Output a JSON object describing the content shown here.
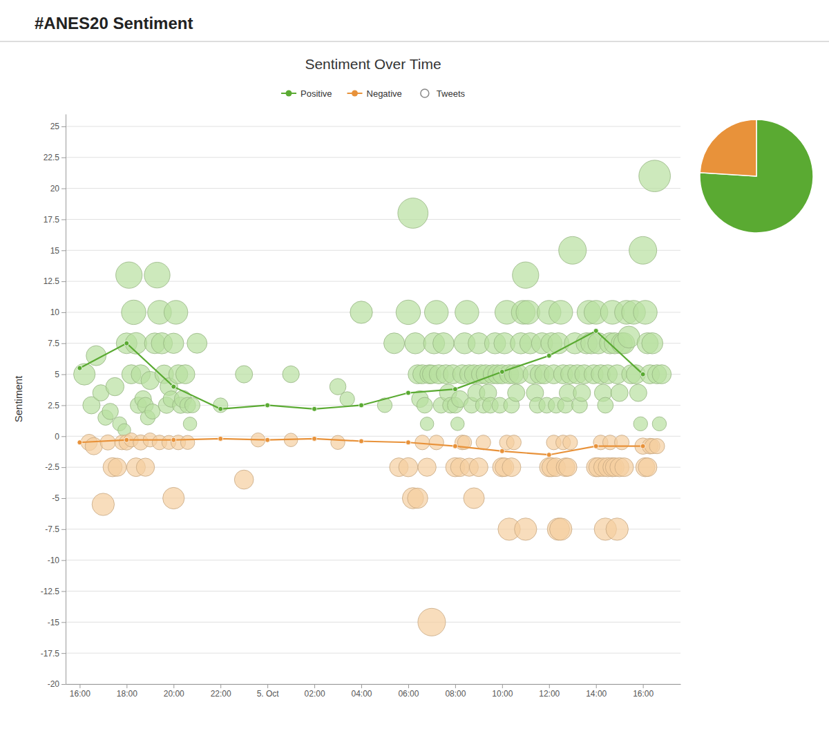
{
  "title": "#ANES20 Sentiment",
  "chart_data": [
    {
      "type": "bubble",
      "title": "Sentiment Over Time",
      "y_label": "Sentiment",
      "xlim": [
        -0.3,
        12.8
      ],
      "xticks": [
        {
          "value": 0,
          "label": "16:00"
        },
        {
          "value": 1,
          "label": "18:00"
        },
        {
          "value": 2,
          "label": "20:00"
        },
        {
          "value": 3,
          "label": "22:00"
        },
        {
          "value": 4,
          "label": "5. Oct"
        },
        {
          "value": 5,
          "label": "02:00"
        },
        {
          "value": 6,
          "label": "04:00"
        },
        {
          "value": 7,
          "label": "06:00"
        },
        {
          "value": 8,
          "label": "08:00"
        },
        {
          "value": 9,
          "label": "10:00"
        },
        {
          "value": 10,
          "label": "12:00"
        },
        {
          "value": 11,
          "label": "14:00"
        },
        {
          "value": 12,
          "label": "16:00"
        }
      ],
      "ylim": [
        -20,
        26
      ],
      "yticks": [
        -20,
        -17.5,
        -15,
        -12.5,
        -10,
        -7.5,
        -5,
        -2.5,
        0,
        2.5,
        5,
        7.5,
        10,
        12.5,
        15,
        17.5,
        20,
        22.5,
        25
      ],
      "grid": "y",
      "legend": "top",
      "series": [
        {
          "name": "Positive",
          "type": "line",
          "color": "#5aaa32",
          "marker": "circle",
          "line_style": "solid",
          "x": [
            0,
            1,
            2,
            3,
            4,
            5,
            6,
            7,
            8,
            9,
            10,
            11,
            12
          ],
          "values": [
            5.5,
            7.5,
            4.0,
            2.2,
            2.5,
            2.2,
            2.5,
            3.5,
            3.8,
            5.2,
            6.5,
            8.5,
            5.0
          ]
        },
        {
          "name": "Negative",
          "type": "line",
          "color": "#e8923a",
          "marker": "circle",
          "line_style": "solid",
          "x": [
            0,
            1,
            2,
            3,
            4,
            5,
            6,
            7,
            8,
            9,
            10,
            11,
            12
          ],
          "values": [
            -0.5,
            -0.3,
            -0.3,
            -0.2,
            -0.3,
            -0.2,
            -0.4,
            -0.5,
            -0.8,
            -1.2,
            -1.5,
            -0.8,
            -0.8
          ]
        },
        {
          "name": "Tweets",
          "type": "bubble",
          "color": "#b8dfa0",
          "marker": "circle",
          "x": [
            0.1,
            0.25,
            0.35,
            0.45,
            0.55,
            0.65,
            0.75,
            0.85,
            0.95,
            1.0,
            1.05,
            1.1,
            1.15,
            1.2,
            1.25,
            1.3,
            1.35,
            1.4,
            1.45,
            1.5,
            1.55,
            1.6,
            1.65,
            1.7,
            1.75,
            1.8,
            1.85,
            1.9,
            1.95,
            2.0,
            2.05,
            2.1,
            2.15,
            2.2,
            2.25,
            2.3,
            2.35,
            2.4,
            2.5,
            3.0,
            3.5,
            4.5,
            5.5,
            5.7,
            6.0,
            6.5,
            6.7,
            7.0,
            7.1,
            7.15,
            7.2,
            7.25,
            7.3,
            7.35,
            7.4,
            7.45,
            7.5,
            7.55,
            7.6,
            7.65,
            7.7,
            7.75,
            7.8,
            7.85,
            7.9,
            7.95,
            8.0,
            8.05,
            8.1,
            8.15,
            8.2,
            8.25,
            8.3,
            8.35,
            8.4,
            8.45,
            8.5,
            8.55,
            8.6,
            8.65,
            8.7,
            8.75,
            8.8,
            8.85,
            8.9,
            8.95,
            9.0,
            9.05,
            9.1,
            9.15,
            9.2,
            9.25,
            9.3,
            9.35,
            9.4,
            9.45,
            9.5,
            9.55,
            9.6,
            9.65,
            9.7,
            9.75,
            9.8,
            9.85,
            9.9,
            9.95,
            10.0,
            10.05,
            10.1,
            10.15,
            10.2,
            10.25,
            10.3,
            10.35,
            10.4,
            10.45,
            10.5,
            10.55,
            10.6,
            10.65,
            10.7,
            10.75,
            10.8,
            10.85,
            10.9,
            10.95,
            11.0,
            11.05,
            11.1,
            11.15,
            11.2,
            11.25,
            11.3,
            11.35,
            11.4,
            11.45,
            11.5,
            11.55,
            11.6,
            11.65,
            11.7,
            11.75,
            11.8,
            11.85,
            11.9,
            11.95,
            12.0,
            12.05,
            12.1,
            12.15,
            12.2,
            12.25,
            12.3,
            12.35,
            12.4
          ],
          "values": [
            5.0,
            2.5,
            6.5,
            3.5,
            1.5,
            2.0,
            4.0,
            1.0,
            0.5,
            7.5,
            13.0,
            5.0,
            10.0,
            7.5,
            2.5,
            5.0,
            3.0,
            2.5,
            1.5,
            4.5,
            2.0,
            7.5,
            13.0,
            10.0,
            7.5,
            5.0,
            2.5,
            4.0,
            3.0,
            7.5,
            10.0,
            5.0,
            2.5,
            3.0,
            5.0,
            2.5,
            1.0,
            2.5,
            7.5,
            2.5,
            5.0,
            5.0,
            4.0,
            3.0,
            10.0,
            2.5,
            7.5,
            10.0,
            18.0,
            7.5,
            5.0,
            3.0,
            5.0,
            2.5,
            1.0,
            5.0,
            5.0,
            7.5,
            10.0,
            5.0,
            2.5,
            7.5,
            5.0,
            3.5,
            2.5,
            5.0,
            2.5,
            1.0,
            3.0,
            5.0,
            7.5,
            10.0,
            5.0,
            2.5,
            5.0,
            3.5,
            7.5,
            5.0,
            2.5,
            5.0,
            3.5,
            2.5,
            5.0,
            7.5,
            5.0,
            2.5,
            5.0,
            7.5,
            10.0,
            5.0,
            2.5,
            5.0,
            3.5,
            5.0,
            7.5,
            10.0,
            13.0,
            10.0,
            7.5,
            5.0,
            3.5,
            2.5,
            5.0,
            7.5,
            5.0,
            2.5,
            10.0,
            7.5,
            5.0,
            2.5,
            7.5,
            10.0,
            5.0,
            2.5,
            3.5,
            5.0,
            15.0,
            7.5,
            5.0,
            2.5,
            3.5,
            5.0,
            7.5,
            10.0,
            7.5,
            5.0,
            10.0,
            7.5,
            5.0,
            3.5,
            2.5,
            5.0,
            7.5,
            10.0,
            7.5,
            5.0,
            3.5,
            7.5,
            7.5,
            10.0,
            8.0,
            5.0,
            10.0,
            5.0,
            3.5,
            1.0,
            15.0,
            10.0,
            7.5,
            5.0,
            7.5,
            21.0,
            5.0,
            1.0,
            5.0
          ],
          "sizes": [
            28,
            18,
            24,
            16,
            14,
            16,
            20,
            12,
            10,
            26,
            42,
            22,
            36,
            28,
            16,
            22,
            17,
            15,
            13,
            20,
            14,
            26,
            40,
            34,
            27,
            21,
            16,
            19,
            16,
            25,
            34,
            22,
            16,
            18,
            22,
            15,
            11,
            14,
            24,
            13,
            18,
            17,
            16,
            13,
            30,
            13,
            26,
            36,
            55,
            27,
            22,
            17,
            22,
            15,
            11,
            22,
            21,
            27,
            34,
            22,
            15,
            27,
            22,
            18,
            15,
            22,
            15,
            11,
            17,
            22,
            27,
            34,
            22,
            15,
            22,
            18,
            27,
            22,
            15,
            22,
            18,
            15,
            22,
            27,
            22,
            15,
            22,
            27,
            34,
            22,
            15,
            22,
            18,
            22,
            27,
            34,
            42,
            34,
            27,
            22,
            18,
            15,
            22,
            27,
            22,
            15,
            34,
            27,
            22,
            15,
            27,
            34,
            22,
            15,
            18,
            22,
            46,
            27,
            22,
            15,
            18,
            22,
            27,
            34,
            27,
            22,
            34,
            27,
            22,
            18,
            15,
            22,
            27,
            34,
            27,
            22,
            18,
            27,
            27,
            34,
            29,
            22,
            34,
            22,
            18,
            12,
            46,
            34,
            27,
            22,
            27,
            60,
            22,
            12,
            22
          ]
        },
        {
          "type": "bubble",
          "color": "#f5cfa0",
          "marker": "circle",
          "x": [
            0.2,
            0.3,
            0.5,
            0.6,
            0.7,
            0.8,
            0.9,
            1.0,
            1.1,
            1.2,
            1.3,
            1.4,
            1.5,
            1.7,
            1.9,
            2.0,
            2.1,
            2.3,
            3.5,
            3.8,
            4.5,
            5.5,
            6.8,
            7.0,
            7.1,
            7.2,
            7.3,
            7.4,
            7.5,
            7.6,
            8.0,
            8.1,
            8.15,
            8.2,
            8.3,
            8.4,
            8.5,
            8.6,
            9.0,
            9.05,
            9.1,
            9.15,
            9.2,
            9.25,
            9.5,
            10.0,
            10.05,
            10.1,
            10.15,
            10.2,
            10.25,
            10.3,
            10.35,
            10.4,
            10.45,
            11.0,
            11.05,
            11.1,
            11.15,
            11.2,
            11.25,
            11.3,
            11.35,
            11.4,
            11.45,
            11.5,
            11.55,
            11.6,
            12.0,
            12.05,
            12.1,
            12.15,
            12.2,
            12.3
          ],
          "values": [
            -0.5,
            -0.8,
            -5.5,
            -0.5,
            -2.5,
            -2.5,
            -0.5,
            -0.5,
            -0.3,
            -2.5,
            -0.5,
            -2.5,
            -0.3,
            -0.5,
            -0.5,
            -5.0,
            -0.5,
            -0.5,
            -3.5,
            -0.3,
            -0.3,
            -0.5,
            -2.5,
            -2.5,
            -5.0,
            -5.0,
            -0.5,
            -2.5,
            -15.0,
            -0.5,
            -2.5,
            -2.5,
            -0.5,
            -0.5,
            -2.5,
            -5.0,
            -2.5,
            -0.5,
            -2.5,
            -2.5,
            -0.5,
            -7.5,
            -2.5,
            -0.5,
            -7.5,
            -2.5,
            -2.5,
            -0.5,
            -2.5,
            -7.5,
            -7.5,
            -0.5,
            -2.5,
            -2.5,
            -0.5,
            -2.5,
            -2.5,
            -0.5,
            -2.5,
            -7.5,
            -2.5,
            -0.5,
            -2.5,
            -2.5,
            -7.5,
            -2.5,
            -0.5,
            -2.5,
            -0.8,
            -2.5,
            -2.5,
            -0.8,
            -0.8,
            -0.8
          ],
          "sizes": [
            16,
            18,
            30,
            14,
            22,
            20,
            13,
            14,
            12,
            21,
            14,
            20,
            12,
            13,
            12,
            28,
            13,
            12,
            22,
            12,
            11,
            12,
            21,
            22,
            27,
            25,
            13,
            20,
            46,
            13,
            22,
            21,
            13,
            12,
            20,
            26,
            21,
            13,
            22,
            21,
            13,
            30,
            21,
            13,
            30,
            22,
            22,
            13,
            21,
            30,
            30,
            13,
            21,
            20,
            13,
            22,
            22,
            13,
            21,
            30,
            22,
            13,
            22,
            21,
            30,
            22,
            13,
            21,
            16,
            22,
            21,
            15,
            14,
            14
          ]
        }
      ]
    },
    {
      "type": "pie",
      "values": [
        0.76,
        0.24
      ],
      "colors": [
        "#5aaa32",
        "#e8923a"
      ]
    }
  ]
}
